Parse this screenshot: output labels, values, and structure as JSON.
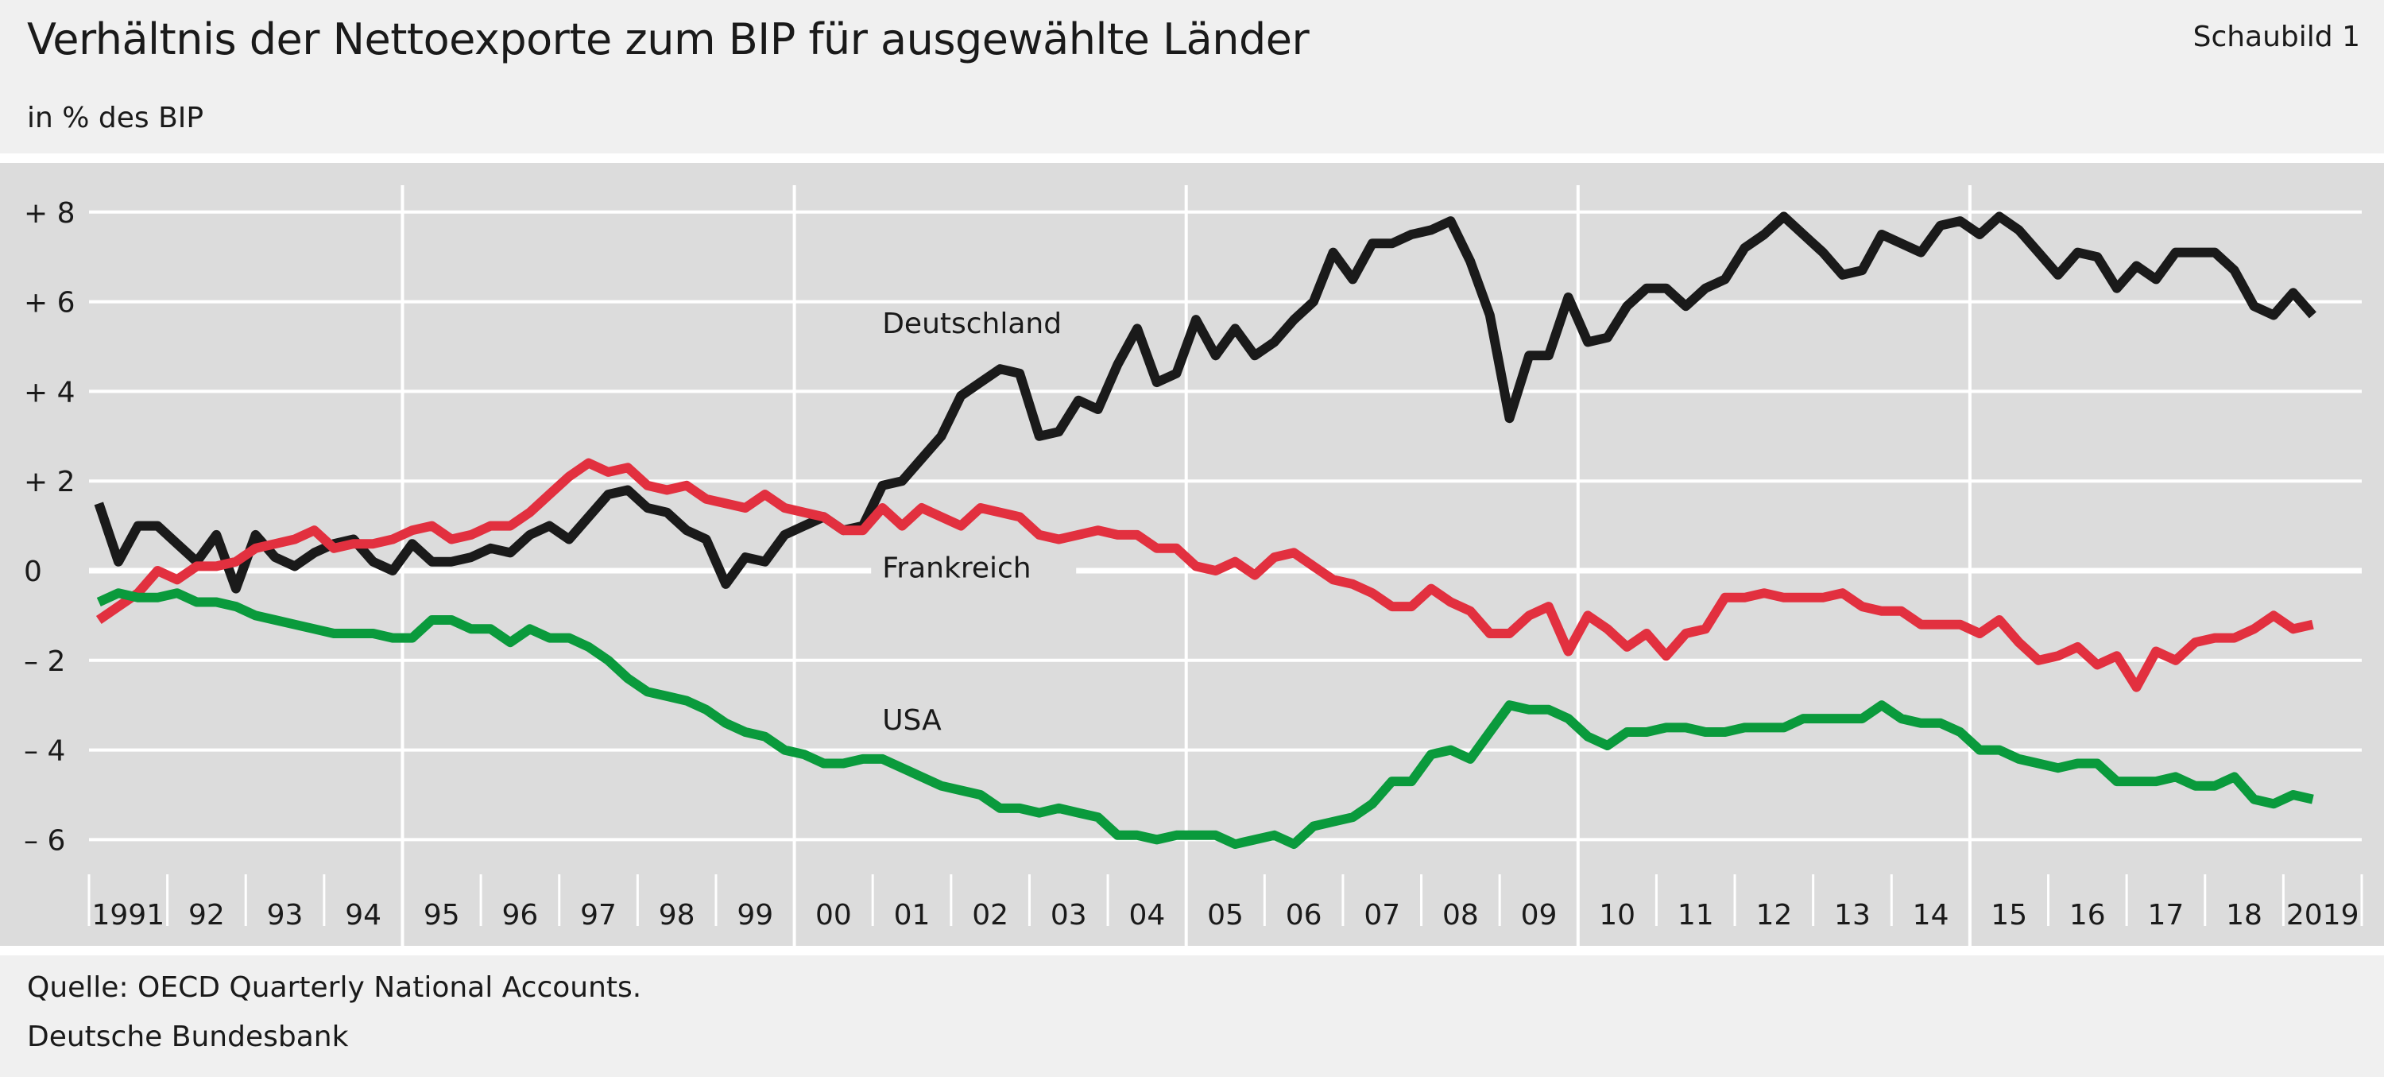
{
  "header": {
    "title": "Verhältnis der Nettoexporte zum BIP für ausgewählte Länder",
    "figure_label": "Schaubild 1",
    "subtitle": "in % des BIP"
  },
  "footer": {
    "source": "Quelle: OECD Quarterly National Accounts.",
    "publisher": "Deutsche Bundesbank"
  },
  "colors": {
    "background": "#f0f0f0",
    "plot_background": "#dcdcdc",
    "grid": "#ffffff",
    "deutschland": "#1a1a1a",
    "frankreich": "#e2303f",
    "usa": "#0a9a3c"
  },
  "chart_data": {
    "type": "line",
    "title": "Verhältnis der Nettoexporte zum BIP für ausgewählte Länder",
    "subtitle": "in % des BIP",
    "xlabel": "",
    "ylabel": "",
    "x_range": [
      1991,
      2020
    ],
    "ylim": [
      -7.1,
      8.6
    ],
    "yticks": [
      8,
      6,
      4,
      2,
      0,
      -2,
      -4,
      -6
    ],
    "ytick_labels": [
      "+ 8",
      "+ 6",
      "+ 4",
      "+ 2",
      "0",
      "– 2",
      "– 4",
      "– 6"
    ],
    "xtick_labels": [
      "1991",
      "92",
      "93",
      "94",
      "95",
      "96",
      "97",
      "98",
      "99",
      "00",
      "01",
      "02",
      "03",
      "04",
      "05",
      "06",
      "07",
      "08",
      "09",
      "10",
      "11",
      "12",
      "13",
      "14",
      "15",
      "16",
      "17",
      "18",
      "2019"
    ],
    "grid": true,
    "major_vertical_gridlines_years": [
      1995,
      2000,
      2005,
      2010,
      2015
    ],
    "frequency": "quarterly",
    "series": [
      {
        "name": "Deutschland",
        "color": "#1a1a1a",
        "label_x": 2001,
        "label_y": 5.3,
        "values": [
          1.5,
          0.2,
          1.0,
          1.0,
          0.6,
          0.2,
          0.8,
          -0.4,
          0.8,
          0.3,
          0.1,
          0.4,
          0.6,
          0.7,
          0.2,
          0.0,
          0.6,
          0.2,
          0.2,
          0.3,
          0.5,
          0.4,
          0.8,
          1.0,
          0.7,
          1.2,
          1.7,
          1.8,
          1.4,
          1.3,
          0.9,
          0.7,
          -0.3,
          0.3,
          0.2,
          0.8,
          1.0,
          1.2,
          0.9,
          1.0,
          1.9,
          2.0,
          2.5,
          3.0,
          3.9,
          4.2,
          4.5,
          4.4,
          3.0,
          3.1,
          3.8,
          3.6,
          4.6,
          5.4,
          4.2,
          4.4,
          5.6,
          4.8,
          5.4,
          4.8,
          5.1,
          5.6,
          6.0,
          7.1,
          6.5,
          7.3,
          7.3,
          7.5,
          7.6,
          7.8,
          6.9,
          5.7,
          3.4,
          4.8,
          4.8,
          6.1,
          5.1,
          5.2,
          5.9,
          6.3,
          6.3,
          5.9,
          6.3,
          6.5,
          7.2,
          7.5,
          7.9,
          7.5,
          7.1,
          6.6,
          6.7,
          7.5,
          7.3,
          7.1,
          7.7,
          7.8,
          7.5,
          7.9,
          7.6,
          7.1,
          6.6,
          7.1,
          7.0,
          6.3,
          6.8,
          6.5,
          7.1,
          7.1,
          7.1,
          6.7,
          5.9,
          5.7,
          6.2,
          5.7
        ]
      },
      {
        "name": "Frankreich",
        "color": "#e2303f",
        "label_x": 2001,
        "label_y": -0.15,
        "values": [
          -1.1,
          -0.8,
          -0.5,
          0.0,
          -0.2,
          0.1,
          0.1,
          0.2,
          0.5,
          0.6,
          0.7,
          0.9,
          0.5,
          0.6,
          0.6,
          0.7,
          0.9,
          1.0,
          0.7,
          0.8,
          1.0,
          1.0,
          1.3,
          1.7,
          2.1,
          2.4,
          2.2,
          2.3,
          1.9,
          1.8,
          1.9,
          1.6,
          1.5,
          1.4,
          1.7,
          1.4,
          1.3,
          1.2,
          0.9,
          0.9,
          1.4,
          1.0,
          1.4,
          1.2,
          1.0,
          1.4,
          1.3,
          1.2,
          0.8,
          0.7,
          0.8,
          0.9,
          0.8,
          0.8,
          0.5,
          0.5,
          0.1,
          0.0,
          0.2,
          -0.1,
          0.3,
          0.4,
          0.1,
          -0.2,
          -0.3,
          -0.5,
          -0.8,
          -0.8,
          -0.4,
          -0.7,
          -0.9,
          -1.4,
          -1.4,
          -1.0,
          -0.8,
          -1.8,
          -1.0,
          -1.3,
          -1.7,
          -1.4,
          -1.9,
          -1.4,
          -1.3,
          -0.6,
          -0.6,
          -0.5,
          -0.6,
          -0.6,
          -0.6,
          -0.5,
          -0.8,
          -0.9,
          -0.9,
          -1.2,
          -1.2,
          -1.2,
          -1.4,
          -1.1,
          -1.6,
          -2.0,
          -1.9,
          -1.7,
          -2.1,
          -1.9,
          -2.6,
          -1.8,
          -2.0,
          -1.6,
          -1.5,
          -1.5,
          -1.3,
          -1.0,
          -1.3,
          -1.2
        ]
      },
      {
        "name": "USA",
        "color": "#0a9a3c",
        "label_x": 2001,
        "label_y": -3.55,
        "values": [
          -0.7,
          -0.5,
          -0.6,
          -0.6,
          -0.5,
          -0.7,
          -0.7,
          -0.8,
          -1.0,
          -1.1,
          -1.2,
          -1.3,
          -1.4,
          -1.4,
          -1.4,
          -1.5,
          -1.5,
          -1.1,
          -1.1,
          -1.3,
          -1.3,
          -1.6,
          -1.3,
          -1.5,
          -1.5,
          -1.7,
          -2.0,
          -2.4,
          -2.7,
          -2.8,
          -2.9,
          -3.1,
          -3.4,
          -3.6,
          -3.7,
          -4.0,
          -4.1,
          -4.3,
          -4.3,
          -4.2,
          -4.2,
          -4.4,
          -4.6,
          -4.8,
          -4.9,
          -5.0,
          -5.3,
          -5.3,
          -5.4,
          -5.3,
          -5.4,
          -5.5,
          -5.9,
          -5.9,
          -6.0,
          -5.9,
          -5.9,
          -5.9,
          -6.1,
          -6.0,
          -5.9,
          -6.1,
          -5.7,
          -5.6,
          -5.5,
          -5.2,
          -4.7,
          -4.7,
          -4.1,
          -4.0,
          -4.2,
          -3.6,
          -3.0,
          -3.1,
          -3.1,
          -3.3,
          -3.7,
          -3.9,
          -3.6,
          -3.6,
          -3.5,
          -3.5,
          -3.6,
          -3.6,
          -3.5,
          -3.5,
          -3.5,
          -3.3,
          -3.3,
          -3.3,
          -3.3,
          -3.0,
          -3.3,
          -3.4,
          -3.4,
          -3.6,
          -4.0,
          -4.0,
          -4.2,
          -4.3,
          -4.4,
          -4.3,
          -4.3,
          -4.7,
          -4.7,
          -4.7,
          -4.6,
          -4.8,
          -4.8,
          -4.6,
          -5.1,
          -5.2,
          -5.0,
          -5.1
        ]
      }
    ]
  }
}
